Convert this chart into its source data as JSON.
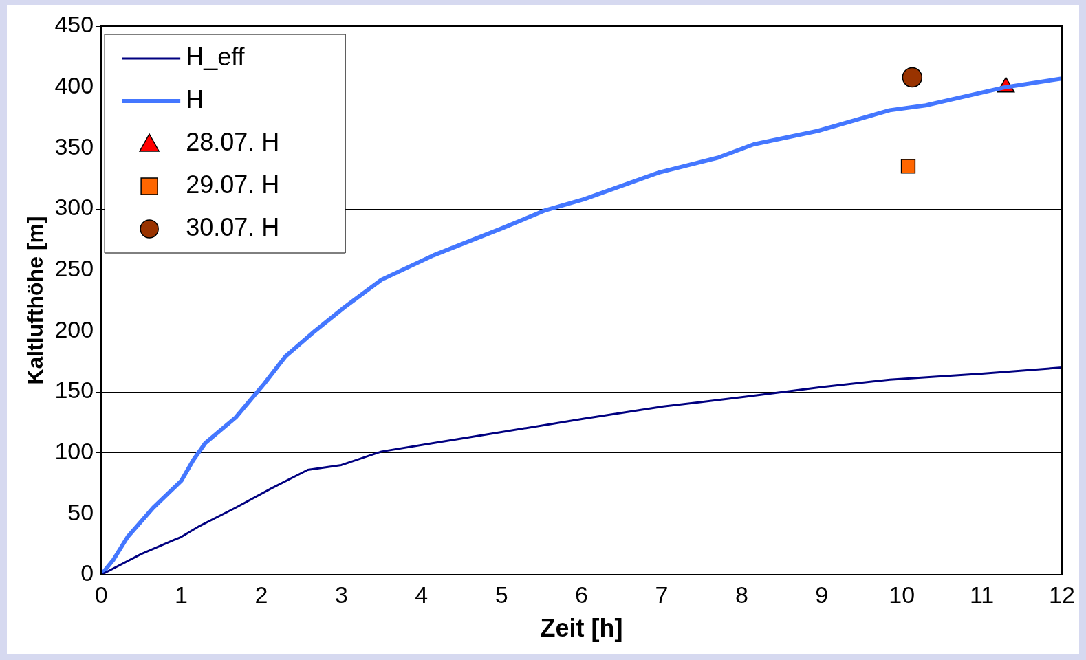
{
  "chart_data": {
    "type": "line",
    "xlabel": "Zeit [h]",
    "ylabel": "Kaltlufthöhe [m]",
    "xlim": [
      0,
      12
    ],
    "xticks": [
      0,
      1,
      2,
      3,
      4,
      5,
      6,
      7,
      8,
      9,
      10,
      11,
      12
    ],
    "ylim": [
      0,
      450
    ],
    "yticks": [
      0,
      50,
      100,
      150,
      200,
      250,
      300,
      350,
      400,
      450
    ],
    "grid": "y",
    "legend": "top left",
    "series": [
      {
        "name": "H_eff",
        "color": "#000080",
        "type": "line",
        "marker": "none",
        "x": [
          0,
          0.5,
          1,
          1.23,
          1.68,
          2.13,
          2.58,
          3,
          3.5,
          4.15,
          5,
          6.03,
          7.02,
          8.05,
          9,
          9.85,
          11,
          12
        ],
        "values": [
          0,
          17,
          31,
          40,
          55,
          71,
          86,
          90,
          101,
          108,
          117,
          128,
          138,
          146,
          154,
          160,
          165,
          170
        ]
      },
      {
        "name": "H",
        "color": "#4477ff",
        "type": "line",
        "marker": "none",
        "x": [
          0,
          0.15,
          0.33,
          0.65,
          1,
          1.15,
          1.3,
          1.68,
          2.04,
          2.3,
          2.67,
          3.03,
          3.5,
          4.15,
          5,
          5.55,
          6.03,
          6.97,
          7.7,
          8.15,
          8.95,
          9.85,
          10.3,
          10.83,
          11.3,
          12
        ],
        "values": [
          0,
          12,
          31,
          55,
          77,
          94,
          108,
          129,
          157,
          179,
          200,
          219,
          242,
          262,
          284,
          299,
          308,
          330,
          342,
          353,
          364,
          381,
          385,
          393,
          400,
          407
        ]
      },
      {
        "name": "28.07. H",
        "color": "#ff0000",
        "type": "scatter",
        "marker": "triangle",
        "x": [
          11.3
        ],
        "values": [
          400
        ]
      },
      {
        "name": "29.07. H",
        "color": "#ff6600",
        "type": "scatter",
        "marker": "square",
        "x": [
          10.08
        ],
        "values": [
          335
        ]
      },
      {
        "name": "30.07. H",
        "color": "#993300",
        "type": "scatter",
        "marker": "circle",
        "x": [
          10.13
        ],
        "values": [
          408
        ]
      }
    ]
  }
}
